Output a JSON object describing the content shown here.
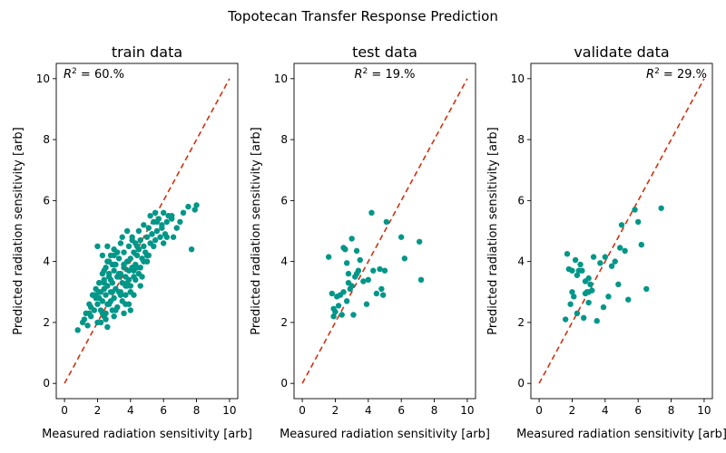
{
  "figure": {
    "suptitle": "Topotecan Transfer Response Prediction"
  },
  "style": {
    "point_color": "#009688",
    "identity_color": "#cc3311"
  },
  "chart_data": [
    {
      "type": "scatter",
      "title": "train data",
      "xlabel": "Measured radiation sensitivity [arb]",
      "ylabel": "Predicted radiation sensitivity [arb]",
      "xlim": [
        -0.5,
        10.5
      ],
      "ylim": [
        -0.5,
        10.5
      ],
      "xticks": [
        0,
        2,
        4,
        6,
        8,
        10
      ],
      "yticks": [
        0,
        2,
        4,
        6,
        8,
        10
      ],
      "annotation": {
        "r2": "60.%",
        "position": "top-left"
      },
      "reference_line": {
        "x": [
          0,
          10
        ],
        "y": [
          0,
          10
        ],
        "style": "dashed"
      },
      "points": {
        "x": [
          0.8,
          1.1,
          1.3,
          1.4,
          1.5,
          1.6,
          1.7,
          1.8,
          1.9,
          2.0,
          2.0,
          2.1,
          2.1,
          2.2,
          2.2,
          2.3,
          2.3,
          2.4,
          2.4,
          2.5,
          2.5,
          2.5,
          2.6,
          2.6,
          2.7,
          2.7,
          2.8,
          2.8,
          2.9,
          2.9,
          3.0,
          3.0,
          3.0,
          3.1,
          3.1,
          3.2,
          3.2,
          3.3,
          3.3,
          3.4,
          3.4,
          3.5,
          3.5,
          3.6,
          3.6,
          3.7,
          3.7,
          3.8,
          3.8,
          3.9,
          3.9,
          4.0,
          4.0,
          4.1,
          4.1,
          4.2,
          4.2,
          4.3,
          4.3,
          4.4,
          4.5,
          4.5,
          4.6,
          4.6,
          4.7,
          4.8,
          4.8,
          4.9,
          5.0,
          5.0,
          5.1,
          5.2,
          5.2,
          5.3,
          5.4,
          5.5,
          5.5,
          5.6,
          5.7,
          5.8,
          5.9,
          6.0,
          6.1,
          6.2,
          6.3,
          6.5,
          6.6,
          6.8,
          7.0,
          7.2,
          7.5,
          7.7,
          7.9,
          8.0,
          1.2,
          1.6,
          1.9,
          2.3,
          2.6,
          2.9,
          3.1,
          3.4,
          3.7,
          4.0,
          4.3,
          4.6,
          2.1,
          2.4,
          2.7,
          3.0,
          3.3,
          3.6,
          3.9,
          1.5,
          1.8,
          2.1,
          2.4,
          2.7,
          3.0,
          3.3,
          3.6,
          3.9,
          4.2,
          4.5,
          4.8,
          5.1,
          5.4,
          5.7,
          6.0,
          2.2,
          2.5,
          2.8,
          3.1,
          3.4,
          3.7,
          4.0,
          4.4,
          4.7,
          5.0,
          2.0,
          2.3,
          2.6,
          2.9,
          3.2,
          3.5,
          3.8,
          4.1,
          4.4,
          5.3,
          5.6,
          5.9,
          6.2,
          6.5,
          1.9,
          2.4,
          2.8,
          3.2,
          3.6,
          4.0,
          4.5,
          5.0,
          2.6,
          3.0,
          3.4,
          3.8,
          4.2
        ],
        "y": [
          1.75,
          2.0,
          2.3,
          1.9,
          2.6,
          2.2,
          2.9,
          2.4,
          3.1,
          2.6,
          2.0,
          3.3,
          2.8,
          2.4,
          3.0,
          3.6,
          2.7,
          2.2,
          3.4,
          2.9,
          3.8,
          2.1,
          3.2,
          4.0,
          2.6,
          3.5,
          3.0,
          4.2,
          2.4,
          3.3,
          3.7,
          2.8,
          4.4,
          3.1,
          3.9,
          2.5,
          3.5,
          4.1,
          3.0,
          3.6,
          4.6,
          3.3,
          2.7,
          3.9,
          4.3,
          3.5,
          2.9,
          4.0,
          3.3,
          4.5,
          3.7,
          4.1,
          3.2,
          4.8,
          3.8,
          4.3,
          3.5,
          4.6,
          3.9,
          4.2,
          5.0,
          4.4,
          3.8,
          4.7,
          4.1,
          4.5,
          5.2,
          4.3,
          4.8,
          4.0,
          5.1,
          4.6,
          5.5,
          4.9,
          5.3,
          4.7,
          5.6,
          5.0,
          5.4,
          4.8,
          5.2,
          5.6,
          4.9,
          5.3,
          5.5,
          5.4,
          4.8,
          5.1,
          5.3,
          5.6,
          5.8,
          4.4,
          5.7,
          5.85,
          2.1,
          2.5,
          2.8,
          2.3,
          2.6,
          3.0,
          2.4,
          2.9,
          3.2,
          3.0,
          3.4,
          3.2,
          3.0,
          3.3,
          3.6,
          3.9,
          3.5,
          3.8,
          2.6,
          2.3,
          2.9,
          3.3,
          3.7,
          4.0,
          4.2,
          3.6,
          3.9,
          3.4,
          3.7,
          4.4,
          4.0,
          4.2,
          4.5,
          5.4,
          4.6,
          2.0,
          2.3,
          2.7,
          3.1,
          2.9,
          2.6,
          3.0,
          3.8,
          3.5,
          4.0,
          4.5,
          4.2,
          4.5,
          3.9,
          4.3,
          4.8,
          5.0,
          4.7,
          4.5,
          4.9,
          5.3,
          5.1,
          4.8,
          5.5,
          2.9,
          3.1,
          3.4,
          3.5,
          2.3,
          2.4,
          3.6,
          4.2,
          1.85,
          2.2,
          3.0,
          3.2,
          2.9
        ]
      }
    },
    {
      "type": "scatter",
      "title": "test data",
      "xlabel": "Measured radiation sensitivity [arb]",
      "ylabel": "Predicted radiation sensitivity [arb]",
      "xlim": [
        -0.5,
        10.5
      ],
      "ylim": [
        -0.5,
        10.5
      ],
      "xticks": [
        0,
        2,
        4,
        6,
        8,
        10
      ],
      "yticks": [
        0,
        2,
        4,
        6,
        8,
        10
      ],
      "annotation": {
        "r2": "19.%",
        "position": "top-center"
      },
      "reference_line": {
        "x": [
          0,
          10
        ],
        "y": [
          0,
          10
        ],
        "style": "dashed"
      },
      "points": {
        "x": [
          1.6,
          1.8,
          1.9,
          2.0,
          2.1,
          2.2,
          2.3,
          2.4,
          2.5,
          2.5,
          2.6,
          2.7,
          2.8,
          2.8,
          2.9,
          3.0,
          3.0,
          3.1,
          3.2,
          3.3,
          3.4,
          3.5,
          3.7,
          3.9,
          4.0,
          4.2,
          4.3,
          4.5,
          4.7,
          4.8,
          4.9,
          5.0,
          5.1,
          6.0,
          6.2,
          7.1,
          7.2,
          2.7,
          3.3,
          1.9
        ],
        "y": [
          4.15,
          2.95,
          2.2,
          2.35,
          2.85,
          2.55,
          2.9,
          2.25,
          4.45,
          3.0,
          4.4,
          3.95,
          3.3,
          3.6,
          3.1,
          4.75,
          3.2,
          2.25,
          3.5,
          4.35,
          3.7,
          4.05,
          3.35,
          2.6,
          3.4,
          5.6,
          3.7,
          2.95,
          3.75,
          3.1,
          2.9,
          3.7,
          5.3,
          4.8,
          4.1,
          4.65,
          3.4,
          2.7,
          3.6,
          2.45
        ]
      }
    },
    {
      "type": "scatter",
      "title": "validate data",
      "xlabel": "Measured radiation sensitivity [arb]",
      "ylabel": "Predicted radiation sensitivity [arb]",
      "xlim": [
        -0.5,
        10.5
      ],
      "ylim": [
        -0.5,
        10.5
      ],
      "xticks": [
        0,
        2,
        4,
        6,
        8,
        10
      ],
      "yticks": [
        0,
        2,
        4,
        6,
        8,
        10
      ],
      "annotation": {
        "r2": "29.%",
        "position": "top-right"
      },
      "reference_line": {
        "x": [
          0,
          10
        ],
        "y": [
          0,
          10
        ],
        "style": "dashed"
      },
      "points": {
        "x": [
          1.6,
          1.7,
          1.8,
          1.9,
          2.0,
          2.0,
          2.1,
          2.2,
          2.3,
          2.4,
          2.5,
          2.6,
          2.7,
          2.8,
          2.8,
          2.9,
          3.0,
          3.0,
          3.1,
          3.2,
          3.3,
          3.5,
          3.7,
          3.9,
          4.0,
          4.2,
          4.4,
          4.6,
          4.8,
          4.9,
          5.0,
          5.2,
          5.4,
          5.8,
          6.0,
          6.2,
          6.5,
          7.4,
          2.3,
          3.0
        ],
        "y": [
          2.1,
          4.25,
          3.75,
          2.6,
          3.0,
          3.7,
          2.85,
          4.05,
          3.55,
          3.7,
          3.9,
          3.7,
          2.15,
          2.95,
          3.35,
          3.0,
          3.45,
          2.65,
          3.25,
          3.05,
          4.15,
          2.05,
          3.95,
          2.5,
          4.15,
          2.85,
          3.85,
          4.0,
          3.25,
          4.45,
          5.2,
          4.35,
          2.75,
          5.7,
          5.3,
          4.55,
          3.1,
          5.75,
          2.3,
          3.0
        ]
      }
    }
  ]
}
